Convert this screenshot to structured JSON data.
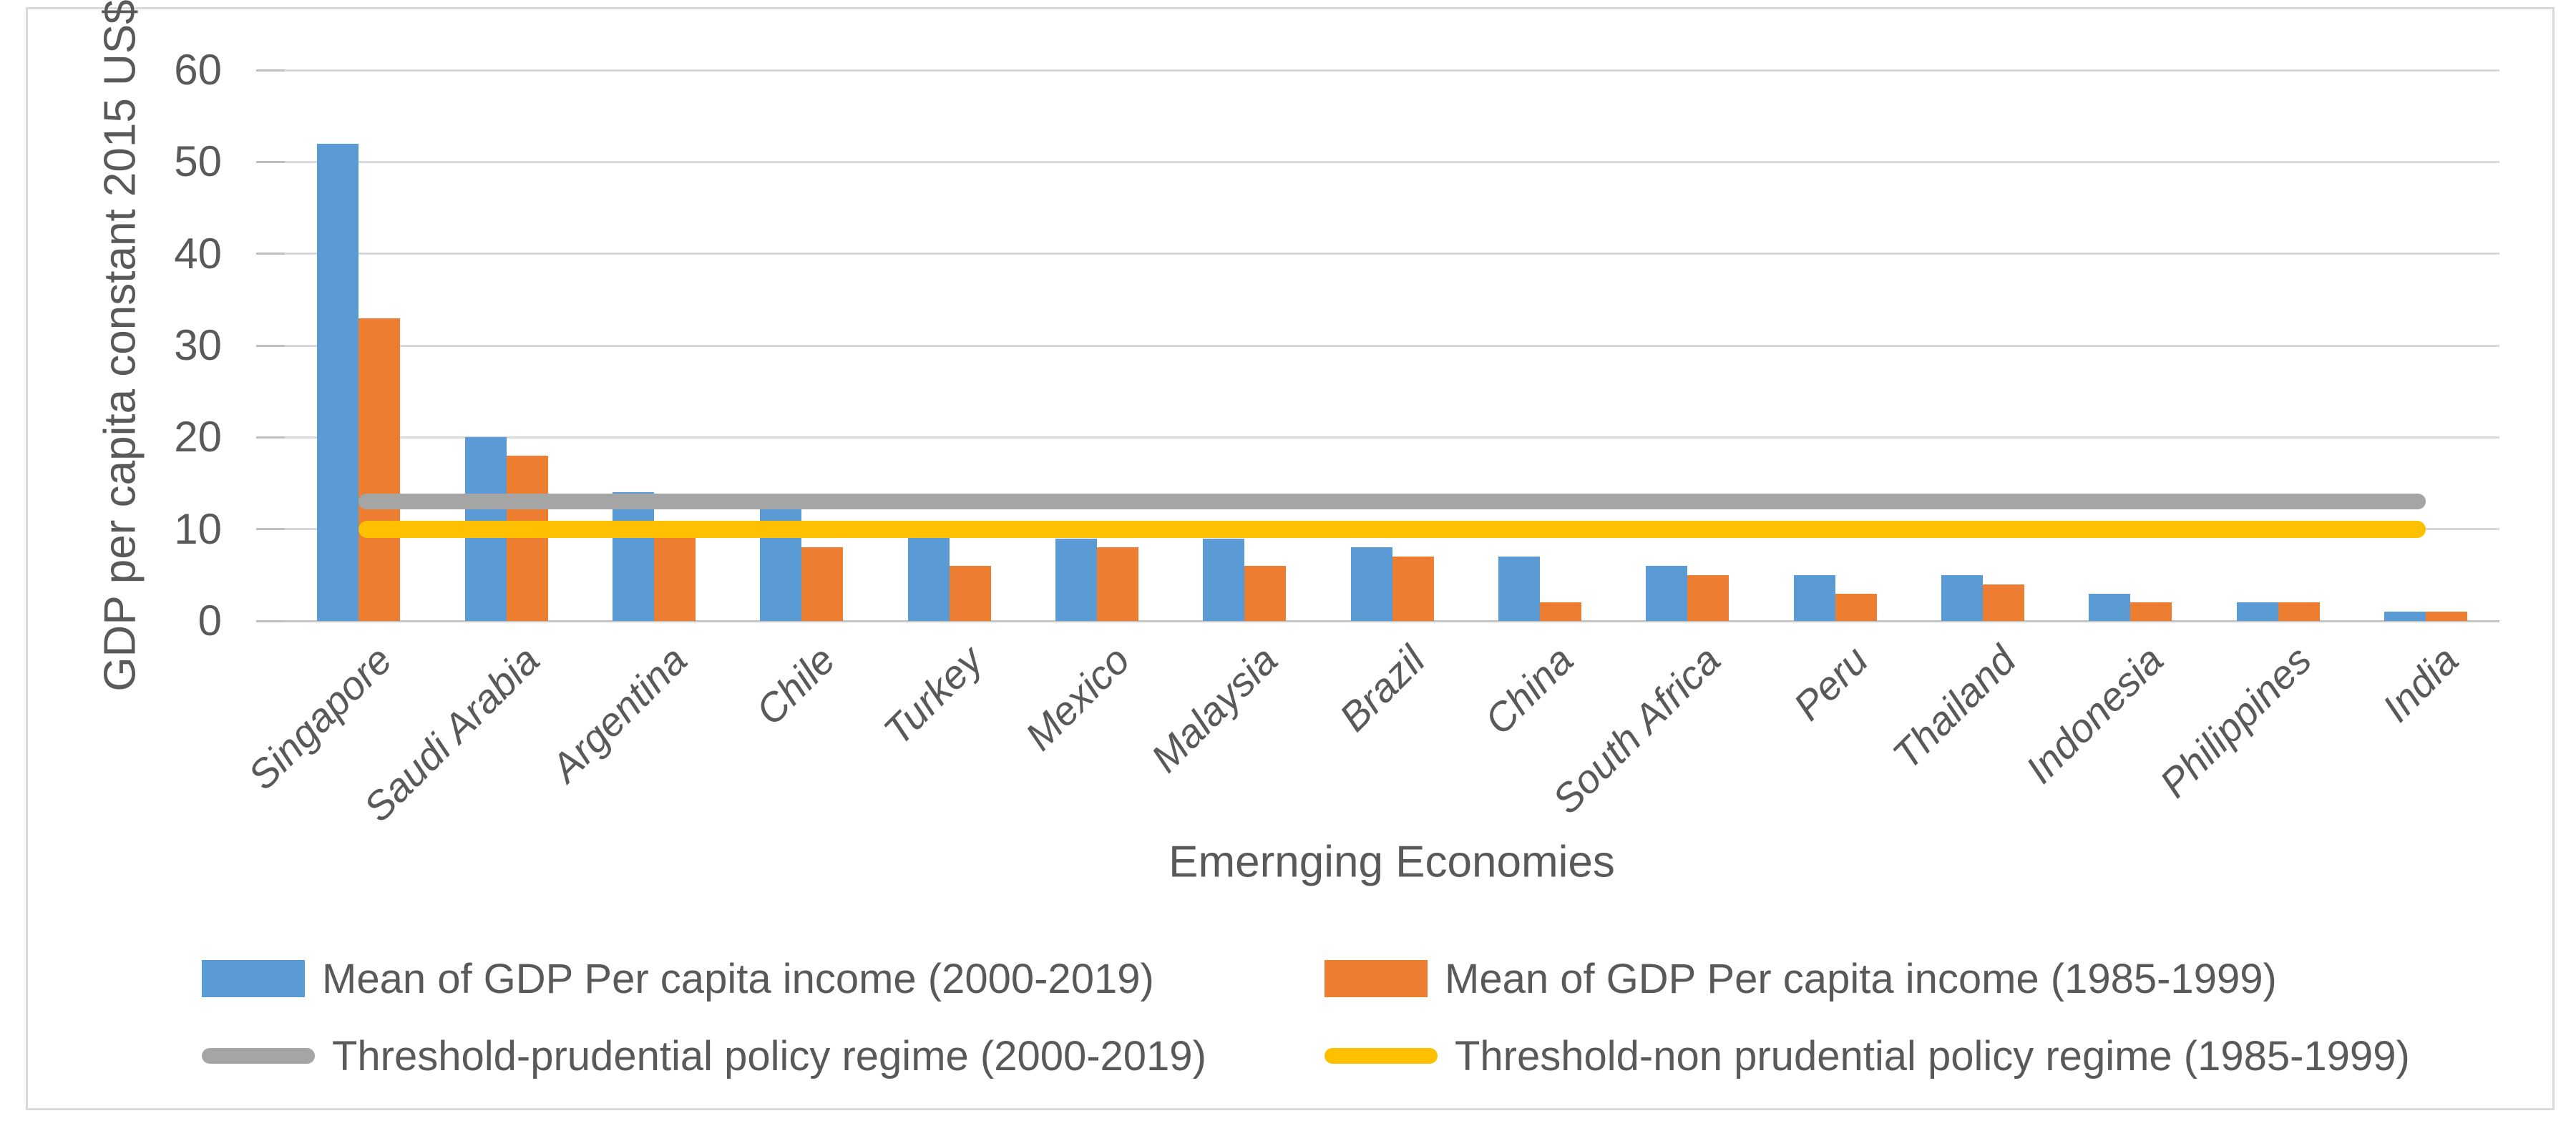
{
  "figure": {
    "y_axis_title": "GDP per capita constant 2015 US$",
    "x_axis_title": "Emernging Economies"
  },
  "legend": {
    "items": [
      {
        "label": "Mean of GDP Per capita income (2000-2019)",
        "color": "#5B9BD5",
        "swatch": "rect"
      },
      {
        "label": "Mean of GDP Per capita income (1985-1999)",
        "color": "#ED7D31",
        "swatch": "rect"
      },
      {
        "label": "Threshold-prudential policy regime (2000-2019)",
        "color": "#A5A5A5",
        "swatch": "line"
      },
      {
        "label": "Threshold-non prudential policy regime (1985-1999)",
        "color": "#FFC000",
        "swatch": "line"
      }
    ]
  },
  "chart_data": {
    "type": "bar",
    "title": "",
    "xlabel": "Emernging Economies",
    "ylabel": "GDP per capita constant 2015 US$",
    "ylim": [
      0,
      60
    ],
    "y_ticks": [
      0,
      10,
      20,
      30,
      40,
      50,
      60
    ],
    "grid": true,
    "legend_position": "bottom",
    "categories": [
      "Singapore",
      "Saudi Arabia",
      "Argentina",
      "Chile",
      "Turkey",
      "Mexico",
      "Malaysia",
      "Brazil",
      "China",
      "South Africa",
      "Peru",
      "Thailand",
      "Indonesia",
      "Philippines",
      "India"
    ],
    "series": [
      {
        "name": "Mean of GDP Per capita income (2000-2019)",
        "color": "#5B9BD5",
        "values": [
          52,
          20,
          14,
          12.5,
          9.5,
          9,
          9,
          8,
          7,
          6,
          5,
          5,
          3,
          2,
          1
        ]
      },
      {
        "name": "Mean of GDP Per capita income (1985-1999)",
        "color": "#ED7D31",
        "values": [
          33,
          18,
          9.5,
          8,
          6,
          8,
          6,
          7,
          2,
          5,
          3,
          4,
          2,
          2,
          1
        ]
      }
    ],
    "threshold_lines": [
      {
        "name": "Threshold-prudential policy regime (2000-2019)",
        "value": 13,
        "color": "#A5A5A5"
      },
      {
        "name": "Threshold-non prudential policy regime (1985-1999)",
        "value": 10,
        "color": "#FFC000"
      }
    ]
  },
  "colors": {
    "bar_blue": "#5B9BD5",
    "bar_orange": "#ED7D31",
    "threshold_gray": "#A5A5A5",
    "threshold_yellow": "#FFC000",
    "gridline": "#D9D9D9",
    "text": "#595959"
  }
}
